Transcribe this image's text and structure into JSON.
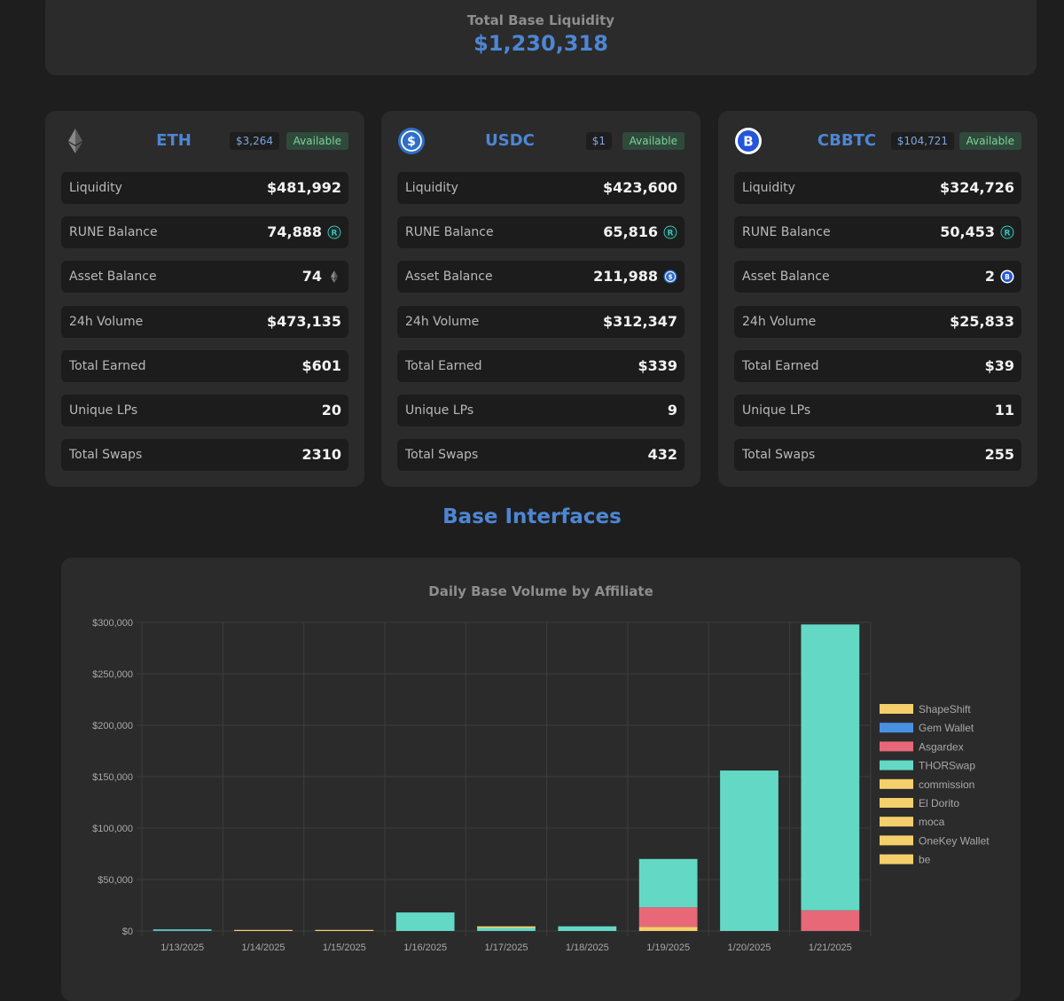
{
  "summary": {
    "label": "Total Base Liquidity",
    "value": "$1,230,318"
  },
  "pools": [
    {
      "name": "ETH",
      "price": "$3,264",
      "status": "Available",
      "icon": "eth-icon",
      "stats": [
        {
          "label": "Liquidity",
          "value": "$481,992"
        },
        {
          "label": "RUNE Balance",
          "value": "74,888",
          "icon": "rune-icon"
        },
        {
          "label": "Asset Balance",
          "value": "74",
          "icon": "eth-icon"
        },
        {
          "label": "24h Volume",
          "value": "$473,135"
        },
        {
          "label": "Total Earned",
          "value": "$601"
        },
        {
          "label": "Unique LPs",
          "value": "20"
        },
        {
          "label": "Total Swaps",
          "value": "2310"
        }
      ]
    },
    {
      "name": "USDC",
      "price": "$1",
      "status": "Available",
      "icon": "usdc-icon",
      "stats": [
        {
          "label": "Liquidity",
          "value": "$423,600"
        },
        {
          "label": "RUNE Balance",
          "value": "65,816",
          "icon": "rune-icon"
        },
        {
          "label": "Asset Balance",
          "value": "211,988",
          "icon": "usdc-icon"
        },
        {
          "label": "24h Volume",
          "value": "$312,347"
        },
        {
          "label": "Total Earned",
          "value": "$339"
        },
        {
          "label": "Unique LPs",
          "value": "9"
        },
        {
          "label": "Total Swaps",
          "value": "432"
        }
      ]
    },
    {
      "name": "CBBTC",
      "price": "$104,721",
      "status": "Available",
      "icon": "cbbtc-icon",
      "stats": [
        {
          "label": "Liquidity",
          "value": "$324,726"
        },
        {
          "label": "RUNE Balance",
          "value": "50,453",
          "icon": "rune-icon"
        },
        {
          "label": "Asset Balance",
          "value": "2",
          "icon": "cbbtc-icon"
        },
        {
          "label": "24h Volume",
          "value": "$25,833"
        },
        {
          "label": "Total Earned",
          "value": "$39"
        },
        {
          "label": "Unique LPs",
          "value": "11"
        },
        {
          "label": "Total Swaps",
          "value": "255"
        }
      ]
    }
  ],
  "section_title": "Base Interfaces",
  "colors": {
    "accent": "#4d86d4",
    "shapeshift": "#f5cf6b",
    "gem": "#4a90e2",
    "asgardex": "#e86878",
    "thorswap": "#63d8c5",
    "yellow": "#f5cf6b",
    "status_bg": "#2f4a3a",
    "status_text": "#7fd1a0"
  },
  "chart_data": {
    "type": "bar",
    "stacked": true,
    "title": "Daily Base Volume by Affiliate",
    "xlabel": "",
    "ylabel": "",
    "ylim": [
      0,
      300000
    ],
    "yticks": [
      "$0",
      "$50,000",
      "$100,000",
      "$150,000",
      "$200,000",
      "$250,000",
      "$300,000"
    ],
    "categories": [
      "1/13/2025",
      "1/14/2025",
      "1/15/2025",
      "1/16/2025",
      "1/17/2025",
      "1/18/2025",
      "1/19/2025",
      "1/20/2025",
      "1/21/2025"
    ],
    "legend_position": "right",
    "series": [
      {
        "name": "ShapeShift",
        "color": "#f5cf6b",
        "values": [
          0,
          0,
          0,
          0,
          0,
          0,
          4000,
          0,
          0
        ]
      },
      {
        "name": "Gem Wallet",
        "color": "#4a90e2",
        "values": [
          300,
          0,
          0,
          0,
          0,
          0,
          0,
          0,
          0
        ]
      },
      {
        "name": "Asgardex",
        "color": "#e86878",
        "values": [
          0,
          0,
          0,
          0,
          0,
          0,
          19000,
          0,
          20000
        ]
      },
      {
        "name": "THORSwap",
        "color": "#63d8c5",
        "values": [
          1200,
          0,
          0,
          18000,
          3000,
          4500,
          47000,
          156000,
          278000
        ]
      },
      {
        "name": "commission",
        "color": "#f5cf6b",
        "values": [
          0,
          0,
          0,
          0,
          1500,
          0,
          0,
          0,
          0
        ]
      },
      {
        "name": "El Dorito",
        "color": "#f5cf6b",
        "values": [
          0,
          400,
          0,
          0,
          0,
          0,
          0,
          0,
          0
        ]
      },
      {
        "name": "moca",
        "color": "#f5cf6b",
        "values": [
          0,
          0,
          0,
          0,
          0,
          0,
          0,
          0,
          0
        ]
      },
      {
        "name": "OneKey Wallet",
        "color": "#f5cf6b",
        "values": [
          0,
          0,
          0,
          0,
          0,
          0,
          0,
          0,
          0
        ]
      },
      {
        "name": "be",
        "color": "#f5cf6b",
        "values": [
          0,
          0,
          1000,
          0,
          0,
          0,
          0,
          0,
          0
        ]
      }
    ]
  }
}
